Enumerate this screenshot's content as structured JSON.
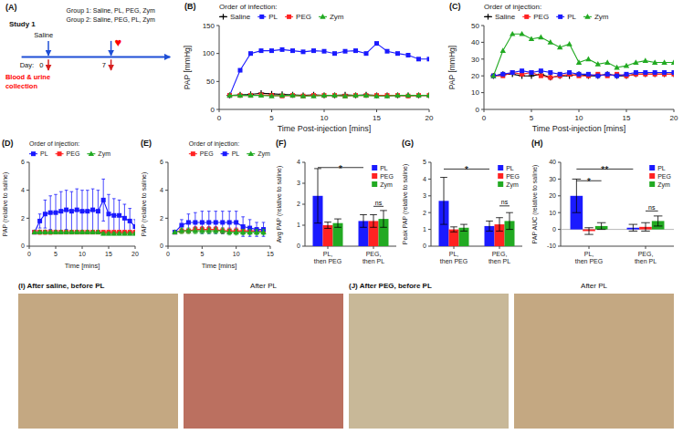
{
  "chart_data": [
    {
      "type": "diagram",
      "title": "(A)",
      "annotations": [
        {
          "text": "Study 1"
        },
        {
          "text": "Group 1: Saline, PL, PEG, Zym"
        },
        {
          "text": "Group 2: Saline, PEG, PL, Zym"
        },
        {
          "text": "Saline"
        },
        {
          "text": "♥",
          "color": "#ff0000"
        },
        {
          "text": "Day:"
        },
        {
          "text": "0"
        },
        {
          "text": "7"
        },
        {
          "text": "Blood & urine",
          "color": "#ff0000"
        },
        {
          "text": "collection",
          "color": "#ff0000"
        }
      ]
    },
    {
      "type": "line",
      "title": "(B)",
      "xlabel": "Time Post-injection [mins]",
      "ylabel": "PAP [mmHg]",
      "x": [
        1,
        2,
        3,
        4,
        5,
        6,
        7,
        8,
        9,
        10,
        11,
        12,
        13,
        14,
        15,
        16,
        17,
        18,
        19,
        20
      ],
      "series": [
        {
          "name": "Saline",
          "color": "#000000",
          "marker": "plus",
          "values": [
            25,
            26,
            27,
            29,
            28,
            27,
            26,
            25,
            26,
            25,
            25,
            26,
            25,
            26,
            25,
            25,
            25,
            25,
            25,
            25
          ]
        },
        {
          "name": "PL",
          "color": "#1a1aff",
          "marker": "square",
          "values": [
            25,
            70,
            100,
            105,
            105,
            107,
            105,
            103,
            105,
            104,
            100,
            104,
            105,
            100,
            118,
            104,
            100,
            97,
            90,
            90
          ]
        },
        {
          "name": "PEG",
          "color": "#ff2222",
          "marker": "square",
          "values": [
            25,
            25,
            25,
            26,
            25,
            24,
            25,
            24,
            25,
            25,
            25,
            24,
            25,
            25,
            25,
            25,
            25,
            24,
            25,
            25
          ]
        },
        {
          "name": "Zym",
          "color": "#22aa22",
          "marker": "triangle",
          "values": [
            25,
            25,
            25,
            25,
            24,
            25,
            25,
            24,
            24,
            25,
            25,
            24,
            25,
            25,
            24,
            24,
            25,
            25,
            25,
            25
          ]
        }
      ],
      "xlim": [
        0,
        20
      ],
      "ylim": [
        0,
        150
      ],
      "xticks": [
        0,
        5,
        10,
        15,
        20
      ],
      "yticks": [
        0,
        50,
        100,
        150
      ],
      "legend": "upper left",
      "legend_title": "Order of infection:"
    },
    {
      "type": "line",
      "title": "(C)",
      "xlabel": "Time Post-injection [mins]",
      "ylabel": "PAP [mmHg]",
      "x": [
        1,
        2,
        3,
        4,
        5,
        6,
        7,
        8,
        9,
        10,
        11,
        12,
        13,
        14,
        15,
        16,
        17,
        18,
        19,
        20
      ],
      "series": [
        {
          "name": "Saline",
          "color": "#000000",
          "marker": "plus",
          "values": [
            20,
            21,
            21,
            20,
            20,
            21,
            19,
            20,
            20,
            21,
            20,
            20,
            21,
            20,
            20,
            21,
            21,
            21,
            21,
            21
          ]
        },
        {
          "name": "PEG",
          "color": "#ff2222",
          "marker": "square",
          "values": [
            20,
            20,
            22,
            21,
            22,
            20,
            19,
            20,
            21,
            20,
            20,
            21,
            20,
            21,
            20,
            21,
            21,
            21,
            21,
            21
          ]
        },
        {
          "name": "PL",
          "color": "#1a1aff",
          "marker": "square",
          "values": [
            20,
            21,
            22,
            23,
            22,
            23,
            22,
            21,
            22,
            21,
            21,
            20,
            21,
            20,
            21,
            22,
            22,
            22,
            22,
            22
          ]
        },
        {
          "name": "Zym",
          "color": "#22aa22",
          "marker": "triangle",
          "values": [
            20,
            35,
            45,
            45,
            42,
            43,
            40,
            37,
            39,
            28,
            30,
            27,
            28,
            25,
            26,
            28,
            29,
            28,
            28,
            28
          ]
        }
      ],
      "xlim": [
        0,
        20
      ],
      "ylim": [
        0,
        50
      ],
      "xticks": [
        0,
        5,
        10,
        15,
        20
      ],
      "yticks": [
        0,
        10,
        20,
        30,
        40,
        50
      ],
      "legend": "upper left",
      "legend_title": "Order of injection:"
    },
    {
      "type": "line",
      "title": "(D)",
      "xlabel": "Time [mins]",
      "ylabel": "PAP (relative to saline)",
      "x": [
        1,
        2,
        3,
        4,
        5,
        6,
        7,
        8,
        9,
        10,
        11,
        12,
        13,
        14,
        15,
        16,
        17,
        18,
        19,
        20
      ],
      "series": [
        {
          "name": "PL",
          "color": "#1a1aff",
          "marker": "square",
          "values": [
            1.0,
            1.8,
            2.3,
            2.4,
            2.4,
            2.5,
            2.6,
            2.5,
            2.6,
            2.5,
            2.5,
            2.6,
            2.5,
            3.3,
            2.3,
            2.2,
            2.2,
            2.0,
            1.8,
            1.4
          ],
          "errors": [
            0.0,
            0.5,
            1.0,
            1.2,
            1.3,
            1.4,
            1.4,
            1.4,
            1.5,
            1.5,
            1.5,
            1.5,
            1.5,
            1.5,
            1.4,
            1.2,
            1.1,
            1.0,
            0.9,
            0.5
          ]
        },
        {
          "name": "PEG",
          "color": "#ff2222",
          "marker": "square",
          "values": [
            1.0,
            1.0,
            1.0,
            1.0,
            1.0,
            1.0,
            1.0,
            1.0,
            1.0,
            1.0,
            1.0,
            1.0,
            1.0,
            1.0,
            1.0,
            1.0,
            1.0,
            1.0,
            1.0,
            1.0
          ],
          "errors": [
            0.0,
            0.15,
            0.15,
            0.15,
            0.1,
            0.1,
            0.1,
            0.1,
            0.1,
            0.1,
            0.1,
            0.1,
            0.1,
            0.1,
            0.1,
            0.1,
            0.1,
            0.1,
            0.1,
            0.1
          ]
        },
        {
          "name": "Zym",
          "color": "#22aa22",
          "marker": "triangle",
          "values": [
            1.0,
            1.0,
            1.0,
            1.0,
            1.0,
            1.0,
            1.0,
            1.0,
            1.0,
            1.0,
            1.0,
            1.0,
            1.0,
            0.9,
            0.9,
            0.9,
            0.9,
            0.9,
            0.9,
            0.9
          ],
          "errors": [
            0.0,
            0.1,
            0.1,
            0.1,
            0.1,
            0.1,
            0.1,
            0.1,
            0.1,
            0.1,
            0.1,
            0.1,
            0.1,
            0.1,
            0.1,
            0.1,
            0.1,
            0.1,
            0.1,
            0.1
          ]
        }
      ],
      "xlim": [
        0,
        20
      ],
      "ylim": [
        0,
        6
      ],
      "xticks": [
        0,
        5,
        10,
        15,
        20
      ],
      "yticks": [
        0,
        2,
        4,
        6
      ],
      "legend": "upper left",
      "legend_title": "Order of injection:"
    },
    {
      "type": "line",
      "title": "(E)",
      "xlabel": "Time [mins]",
      "ylabel": "PAP (relative to saline)",
      "x": [
        1,
        2,
        3,
        4,
        5,
        6,
        7,
        8,
        9,
        10,
        11,
        12,
        13,
        14
      ],
      "series": [
        {
          "name": "PEG",
          "color": "#ff2222",
          "marker": "square",
          "values": [
            1.0,
            1.1,
            1.1,
            1.2,
            1.2,
            1.2,
            1.2,
            1.1,
            1.1,
            1.1,
            1.1,
            1.1,
            1.1,
            1.1
          ],
          "errors": [
            0.05,
            0.1,
            0.1,
            0.2,
            0.2,
            0.2,
            0.2,
            0.2,
            0.2,
            0.2,
            0.2,
            0.2,
            0.2,
            0.2
          ]
        },
        {
          "name": "PL",
          "color": "#1a1aff",
          "marker": "square",
          "values": [
            1.0,
            1.5,
            1.7,
            1.7,
            1.7,
            1.7,
            1.7,
            1.7,
            1.7,
            1.7,
            1.4,
            1.3,
            1.2,
            1.2
          ],
          "errors": [
            0.0,
            0.4,
            0.6,
            0.7,
            0.8,
            0.8,
            0.8,
            0.8,
            0.8,
            0.8,
            0.7,
            0.6,
            0.5,
            0.5
          ]
        },
        {
          "name": "Zym",
          "color": "#22aa22",
          "marker": "triangle",
          "values": [
            1.0,
            1.1,
            1.1,
            1.1,
            1.1,
            1.1,
            1.1,
            1.1,
            1.0,
            1.0,
            1.0,
            1.0,
            1.0,
            1.0
          ],
          "errors": [
            0.0,
            0.2,
            0.2,
            0.2,
            0.2,
            0.2,
            0.2,
            0.2,
            0.2,
            0.2,
            0.2,
            0.2,
            0.2,
            0.2
          ]
        }
      ],
      "xlim": [
        0,
        15
      ],
      "ylim": [
        0,
        6
      ],
      "xticks": [
        0,
        5,
        10,
        15
      ],
      "yticks": [
        0,
        2,
        4,
        6
      ],
      "legend": "upper right",
      "legend_title": "Order of injection:"
    },
    {
      "type": "bar",
      "title": "(F)",
      "ylabel": "Avg PAP (relative to saline)",
      "categories": [
        "PL,\nthen PEG",
        "PEG,\nthen PL"
      ],
      "series": [
        {
          "name": "PL",
          "color": "#1a1aff",
          "values": [
            2.4,
            1.2
          ],
          "errors": [
            1.3,
            0.3
          ]
        },
        {
          "name": "PEG",
          "color": "#ff2222",
          "values": [
            1.0,
            1.2
          ],
          "errors": [
            0.15,
            0.3
          ]
        },
        {
          "name": "Zym",
          "color": "#22aa22",
          "values": [
            1.1,
            1.3
          ],
          "errors": [
            0.2,
            0.4
          ]
        }
      ],
      "ylim": [
        0,
        4
      ],
      "yticks": [
        0,
        1,
        2,
        3,
        4
      ],
      "legend": "upper right",
      "annotations": [
        {
          "text": "*",
          "y": 3.75,
          "between": [
            [
              "PL,\nthen PEG",
              "PL"
            ],
            [
              "PEG,\nthen PL",
              "PL"
            ]
          ]
        },
        {
          "text": "ns",
          "y": 1.9,
          "between": [
            [
              "PEG,\nthen PL",
              "PEG"
            ],
            [
              "PEG,\nthen PL",
              "Zym"
            ]
          ]
        }
      ]
    },
    {
      "type": "bar",
      "title": "(G)",
      "ylabel": "Peak PAP (relative to saline)",
      "categories": [
        "PL,\nthen PEG",
        "PEG,\nthen PL"
      ],
      "series": [
        {
          "name": "PL",
          "color": "#1a1aff",
          "values": [
            2.7,
            1.2
          ],
          "errors": [
            1.4,
            0.3
          ]
        },
        {
          "name": "PEG",
          "color": "#ff2222",
          "values": [
            1.0,
            1.3
          ],
          "errors": [
            0.15,
            0.4
          ]
        },
        {
          "name": "Zym",
          "color": "#22aa22",
          "values": [
            1.1,
            1.5
          ],
          "errors": [
            0.2,
            0.5
          ]
        }
      ],
      "ylim": [
        0,
        5
      ],
      "yticks": [
        0,
        1,
        2,
        3,
        4,
        5
      ],
      "legend": "upper right",
      "annotations": [
        {
          "text": "*",
          "y": 4.6,
          "between": [
            [
              "PL,\nthen PEG",
              "PL"
            ],
            [
              "PEG,\nthen PL",
              "PL"
            ]
          ]
        },
        {
          "text": "ns",
          "y": 2.4,
          "between": [
            [
              "PEG,\nthen PL",
              "PEG"
            ],
            [
              "PEG,\nthen PL",
              "Zym"
            ]
          ]
        }
      ]
    },
    {
      "type": "bar",
      "title": "(H)",
      "ylabel": "PAP AUC (relative to saline)",
      "categories": [
        "PL,\nthen PEG",
        "PEG,\nthen PL"
      ],
      "series": [
        {
          "name": "PL",
          "color": "#1a1aff",
          "values": [
            20.0,
            1.0
          ],
          "errors": [
            10.0,
            2.0
          ]
        },
        {
          "name": "PEG",
          "color": "#ff2222",
          "values": [
            -1.0,
            1.5
          ],
          "errors": [
            2.0,
            2.5
          ]
        },
        {
          "name": "Zym",
          "color": "#22aa22",
          "values": [
            2.0,
            5.0
          ],
          "errors": [
            2.0,
            3.0
          ]
        }
      ],
      "ylim": [
        -10,
        40
      ],
      "yticks": [
        -10,
        0,
        10,
        20,
        30,
        40
      ],
      "legend": "upper right",
      "annotations": [
        {
          "text": "**",
          "y": 36,
          "between": [
            [
              "PL,\nthen PEG",
              "PL"
            ],
            [
              "PEG,\nthen PL",
              "PL"
            ]
          ]
        },
        {
          "text": "*",
          "y": 29,
          "between": [
            [
              "PL,\nthen PEG",
              "PL"
            ],
            [
              "PL,\nthen PEG",
              "Zym"
            ]
          ]
        },
        {
          "text": "ns",
          "y": 11,
          "between": [
            [
              "PEG,\nthen PL",
              "PEG"
            ],
            [
              "PEG,\nthen PL",
              "Zym"
            ]
          ]
        }
      ]
    },
    {
      "type": "image",
      "title": "(I) After saline, before PL",
      "color": "#c4a882"
    },
    {
      "type": "image",
      "title": "After PL",
      "color": "#bb7060"
    },
    {
      "type": "image",
      "title": "(J) After PEG, before PL",
      "color": "#c8b898"
    },
    {
      "type": "image",
      "title": "After PL",
      "color": "#c4a882"
    }
  ]
}
